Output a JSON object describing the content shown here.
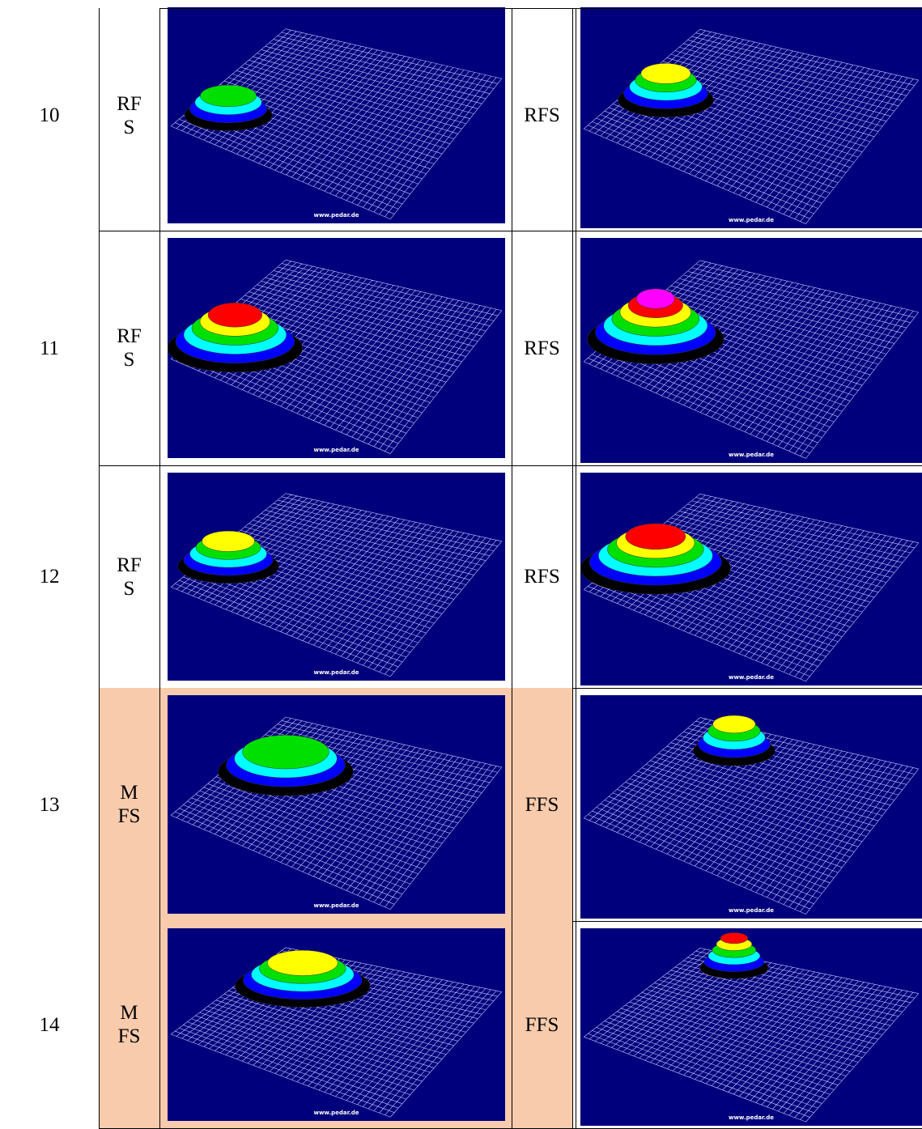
{
  "table": {
    "rows": [
      {
        "number": "10",
        "left_label": "RFS",
        "right_label": "RFS",
        "highlight": false
      },
      {
        "number": "11",
        "left_label": "RFS",
        "right_label": "RFS",
        "highlight": false
      },
      {
        "number": "12",
        "left_label": "RFS",
        "right_label": "RFS",
        "highlight": false
      },
      {
        "number": "13",
        "left_label": "MFS",
        "right_label": "FFS",
        "highlight": true
      },
      {
        "number": "14",
        "left_label": "MFS",
        "right_label": "FFS",
        "highlight": true
      }
    ],
    "image_caption": "www.pedar.de"
  }
}
